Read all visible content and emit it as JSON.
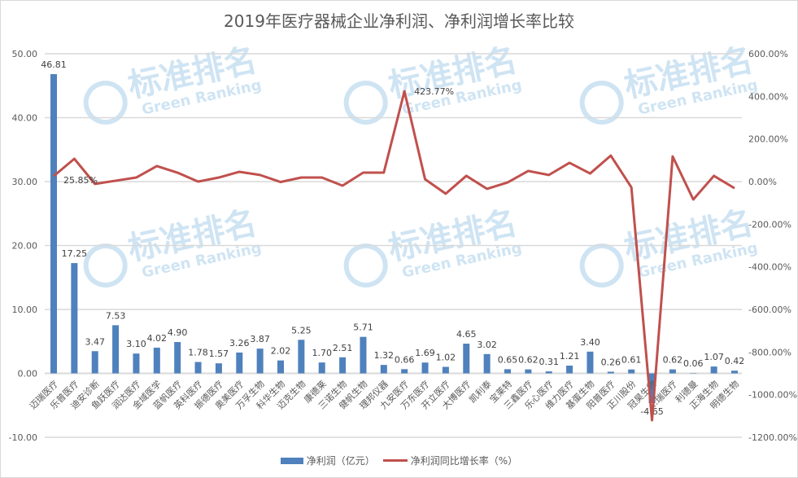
{
  "title": "2019年医疗器械企业净利润、净利润增长率比较",
  "legend": {
    "bar_label": "净利润（亿元）",
    "line_label": "净利润同比增长率（%）"
  },
  "watermark": {
    "cn": "标准排名",
    "en": "Green Ranking"
  },
  "colors": {
    "bar": "#4f81bd",
    "line": "#c0504d",
    "grid": "#d9d9d9",
    "text": "#595959",
    "watermark": "#cfe4f3"
  },
  "chart_data": {
    "type": "bar+line",
    "title": "2019年医疗器械企业净利润、净利润增长率比较",
    "xlabel": "",
    "ylabel_left": "净利润（亿元）",
    "ylabel_right": "净利润同比增长率（%）",
    "ylim_left": [
      -10,
      50
    ],
    "yticks_left": [
      "50.00",
      "40.00",
      "30.00",
      "20.00",
      "10.00",
      "0.00",
      "-10.00"
    ],
    "ylim_right": [
      -1200,
      600
    ],
    "yticks_right": [
      "600.00%",
      "400.00%",
      "200.00%",
      "0.00%",
      "-200.00%",
      "-400.00%",
      "-600.00%",
      "-800.00%",
      "-1000.00%",
      "-1200.00%"
    ],
    "grid": true,
    "legend_position": "bottom",
    "categories": [
      "迈瑞医疗",
      "乐普医疗",
      "迪安诊断",
      "鱼跃医疗",
      "润达医疗",
      "金域医学",
      "蓝帆医疗",
      "英科医疗",
      "振德医疗",
      "奥美医疗",
      "万孚生物",
      "科华生物",
      "迈克生物",
      "康德莱",
      "三诺生物",
      "健帆生物",
      "理邦仪器",
      "九安医疗",
      "万东医疗",
      "开立医疗",
      "大博医疗",
      "凯利泰",
      "宝莱特",
      "三鑫医疗",
      "乐心医疗",
      "维力医疗",
      "基蛋生物",
      "阳普医疗",
      "正川股份",
      "冠昊生物",
      "…瑞医疗",
      "利德曼",
      "正海生物",
      "明德生物"
    ],
    "series": [
      {
        "name": "净利润（亿元）",
        "type": "bar",
        "axis": "left",
        "values": [
          46.81,
          17.25,
          3.47,
          7.53,
          3.1,
          4.02,
          4.9,
          1.78,
          1.57,
          3.26,
          3.87,
          2.02,
          5.25,
          1.7,
          2.51,
          5.71,
          1.32,
          0.66,
          1.69,
          1.02,
          4.65,
          3.02,
          0.65,
          0.62,
          0.31,
          1.21,
          3.4,
          0.26,
          0.61,
          -4.65,
          0.62,
          0.06,
          1.07,
          0.42
        ],
        "labels": [
          "46.81",
          "17.25",
          "3.47",
          "7.53",
          "3.10",
          "4.02",
          "4.90",
          "1.78",
          "1.57",
          "3.26",
          "3.87",
          "2.02",
          "5.25",
          "1.70",
          "2.51",
          "5.71",
          "1.32",
          "0.66",
          "1.69",
          "1.02",
          "4.65",
          "3.02",
          "0.65",
          "0.62",
          "0.31",
          "1.21",
          "3.40",
          "0.26",
          "0.61",
          "-4.65",
          "0.62",
          "0.06",
          "1.07",
          "0.42"
        ]
      },
      {
        "name": "净利润同比增长率（%）",
        "type": "line",
        "axis": "right",
        "values": [
          25.85,
          107,
          -11,
          4,
          19,
          73,
          42,
          0,
          19,
          46,
          31,
          -2,
          19,
          19,
          -19,
          42,
          42,
          423.77,
          11,
          -57,
          27,
          -34,
          -4,
          50,
          31,
          88,
          38,
          122,
          -27,
          -1120,
          118,
          -84,
          27,
          -31
        ],
        "annotations": [
          {
            "index": 0,
            "text": "25.85%"
          },
          {
            "index": 17,
            "text": "423.77%"
          }
        ]
      }
    ]
  }
}
